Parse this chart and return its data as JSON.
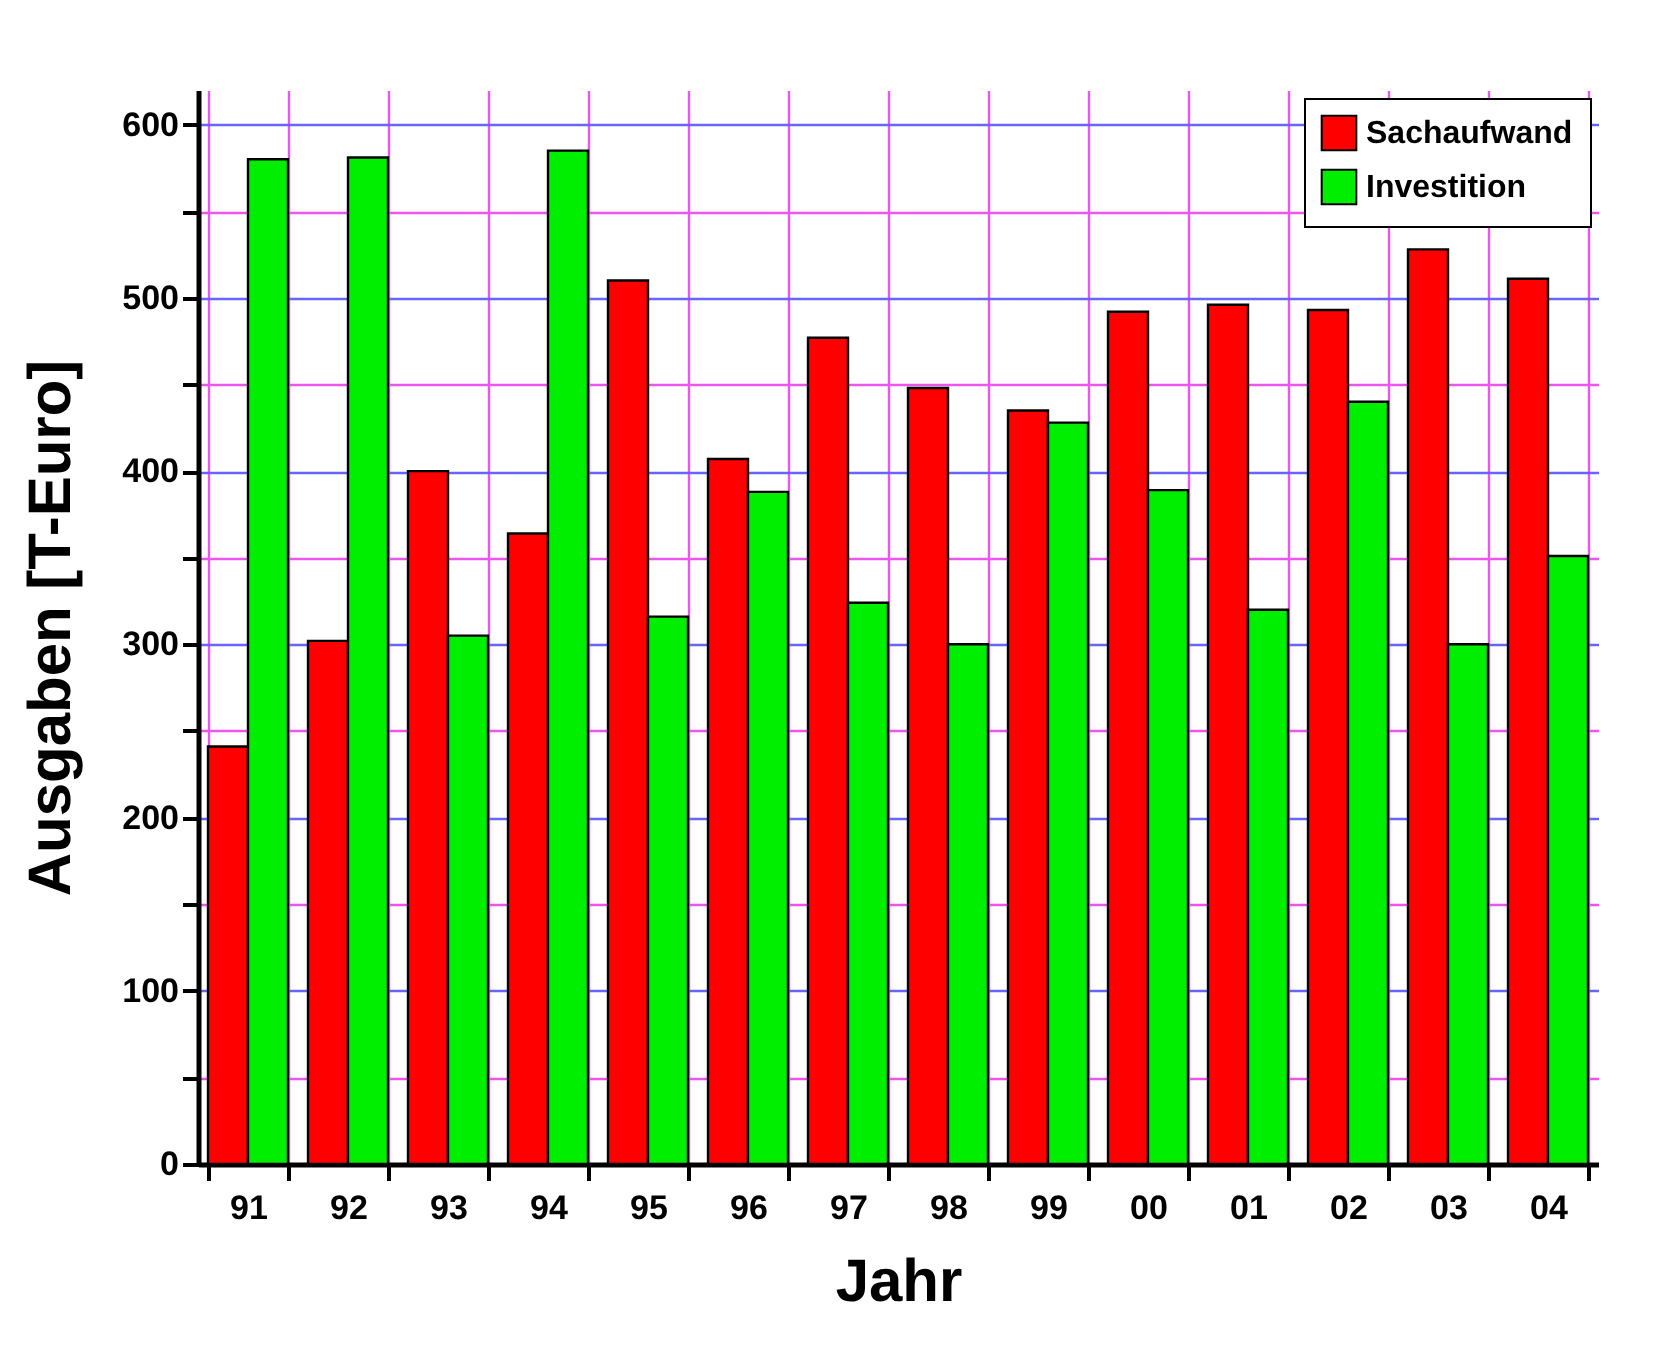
{
  "chart_data": {
    "type": "bar",
    "xlabel": "Jahr",
    "ylabel": "Ausgaben [T-Euro]",
    "categories": [
      "91",
      "92",
      "93",
      "94",
      "95",
      "96",
      "97",
      "98",
      "99",
      "00",
      "01",
      "02",
      "03",
      "04"
    ],
    "series": [
      {
        "name": "Sachaufwand",
        "color": "#ff0000",
        "values": [
          241,
          302,
          400,
          364,
          510,
          407,
          477,
          448,
          435,
          492,
          496,
          493,
          528,
          511
        ]
      },
      {
        "name": "Investition",
        "color": "#00ee00",
        "values": [
          580,
          581,
          305,
          585,
          316,
          388,
          324,
          300,
          428,
          389,
          320,
          440,
          300,
          351
        ]
      }
    ],
    "ylim": [
      0,
      620
    ],
    "yticks": [
      0,
      {
        "value": 50,
        "label": null
      },
      100,
      {
        "value": 150,
        "label": null
      },
      200,
      {
        "value": 250,
        "label": null
      },
      300,
      {
        "value": 350,
        "label": null
      },
      400,
      {
        "value": 450,
        "label": null
      },
      500,
      {
        "value": 550,
        "label": null
      },
      600
    ],
    "grid": true,
    "legend": "top right"
  }
}
